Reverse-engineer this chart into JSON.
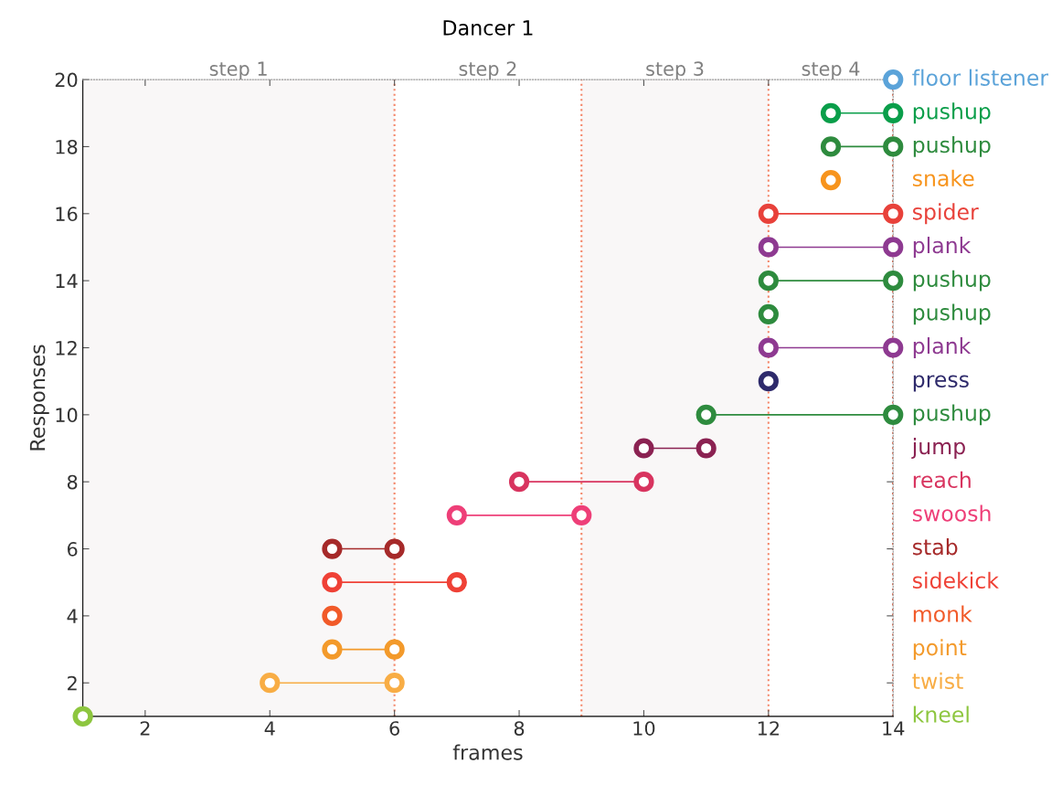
{
  "chart_data": {
    "type": "line",
    "title": "Dancer 1",
    "xlabel": "frames",
    "ylabel": "Responses",
    "xlim": [
      1,
      14
    ],
    "xticks": [
      2,
      4,
      6,
      8,
      10,
      12,
      14
    ],
    "ylim": [
      1,
      20
    ],
    "yticks": [
      2,
      4,
      6,
      8,
      10,
      12,
      14,
      16,
      18,
      20
    ],
    "grid": false,
    "legend": false,
    "marker": "circle",
    "line_style": "solid",
    "bands": [
      {
        "axis": "x",
        "from": 1,
        "to": 6,
        "label": "step 1",
        "color": "#f9f7f7"
      },
      {
        "axis": "x",
        "from": 9,
        "to": 12,
        "label": "step 3",
        "color": "#f9f7f7"
      }
    ],
    "annotations": [
      "step 2",
      "step 4"
    ],
    "ref_lines": [
      {
        "axis": "x",
        "value": 6,
        "color": "#f4876a",
        "line_style": "dotted"
      },
      {
        "axis": "x",
        "value": 9,
        "color": "#f4876a",
        "line_style": "dotted"
      },
      {
        "axis": "x",
        "value": 12,
        "color": "#f4876a",
        "line_style": "dotted"
      },
      {
        "axis": "x",
        "value": 14,
        "color": "#d9401f",
        "line_style": "dotted"
      }
    ],
    "series": [
      {
        "name": "kneel",
        "color": "#8dc63f",
        "x": [
          1
        ],
        "values": [
          1
        ]
      },
      {
        "name": "twist",
        "color": "#f8ad45",
        "x": [
          4,
          6
        ],
        "values": [
          2,
          2
        ]
      },
      {
        "name": "point",
        "color": "#f39a2b",
        "x": [
          5,
          6
        ],
        "values": [
          3,
          3
        ]
      },
      {
        "name": "monk",
        "color": "#f15a29",
        "x": [
          5
        ],
        "values": [
          4
        ]
      },
      {
        "name": "sidekick",
        "color": "#ef4136",
        "x": [
          5,
          7
        ],
        "values": [
          5,
          5
        ]
      },
      {
        "name": "stab",
        "color": "#a62a2a",
        "x": [
          5,
          6
        ],
        "values": [
          6,
          6
        ]
      },
      {
        "name": "swoosh",
        "color": "#ee3f78",
        "x": [
          7,
          9
        ],
        "values": [
          7,
          7
        ]
      },
      {
        "name": "reach",
        "color": "#d8345f",
        "x": [
          8,
          10
        ],
        "values": [
          8,
          8
        ]
      },
      {
        "name": "jump",
        "color": "#8b2252",
        "x": [
          10,
          11
        ],
        "values": [
          9,
          9
        ]
      },
      {
        "name": "pushup",
        "color": "#2e8b3e",
        "x": [
          11,
          14
        ],
        "values": [
          10,
          10
        ]
      },
      {
        "name": "press",
        "color": "#2e2a6b",
        "x": [
          12
        ],
        "values": [
          11
        ]
      },
      {
        "name": "plank",
        "color": "#8e3a91",
        "x": [
          12,
          14
        ],
        "values": [
          12,
          12
        ]
      },
      {
        "name": "pushup",
        "color": "#2e8b3e",
        "x": [
          12
        ],
        "values": [
          13
        ]
      },
      {
        "name": "pushup",
        "color": "#2e8b3e",
        "x": [
          12,
          14
        ],
        "values": [
          14,
          14
        ]
      },
      {
        "name": "plank",
        "color": "#8e3a91",
        "x": [
          12,
          14
        ],
        "values": [
          15,
          15
        ]
      },
      {
        "name": "spider",
        "color": "#e8413a",
        "x": [
          12,
          14
        ],
        "values": [
          16,
          16
        ]
      },
      {
        "name": "snake",
        "color": "#f7941d",
        "x": [
          13
        ],
        "values": [
          17
        ]
      },
      {
        "name": "pushup",
        "color": "#2e8b3e",
        "x": [
          13,
          14
        ],
        "values": [
          18,
          18
        ]
      },
      {
        "name": "pushup",
        "color": "#0a9e4a",
        "x": [
          13,
          14
        ],
        "values": [
          19,
          19
        ]
      },
      {
        "name": "floor listener",
        "color": "#5ba3d9",
        "x": [
          14
        ],
        "values": [
          20
        ]
      }
    ]
  }
}
